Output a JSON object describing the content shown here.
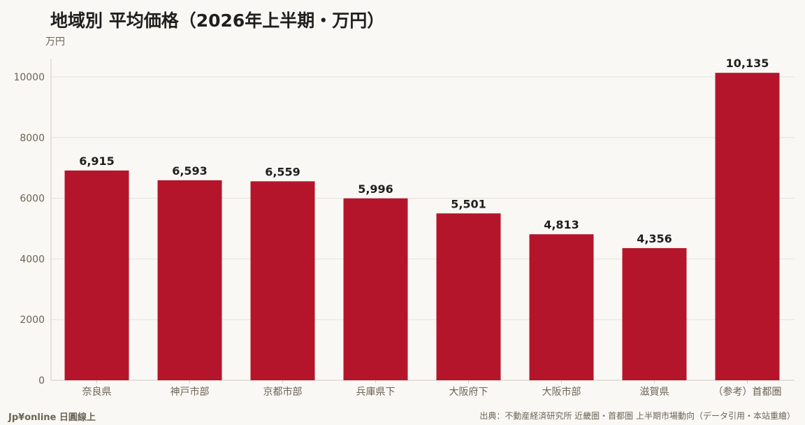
{
  "header": {
    "title": "地域別 平均価格（2026年上半期・万円）",
    "unit_label": "万円"
  },
  "footer": {
    "brand": "Jp¥online 日圓線上",
    "source": "出典：不動産経済研究所 近畿圏・首都圏 上半期市場動向（データ引用・本站重繪）"
  },
  "colors": {
    "bar": "#b5152b",
    "grid": "#e6e2da",
    "axis_text": "#6b6456",
    "label_text": "#1f1f1f"
  },
  "chart_data": {
    "type": "bar",
    "title": "地域別 平均価格（2026年上半期・万円）",
    "ylabel": "万円",
    "xlabel": "",
    "categories": [
      "奈良県",
      "神戸市部",
      "京都市部",
      "兵庫県下",
      "大阪府下",
      "大阪市部",
      "滋賀県",
      "（参考）首都圏"
    ],
    "values": [
      6915,
      6593,
      6559,
      5996,
      5501,
      4813,
      4356,
      10135
    ],
    "value_labels": [
      "6,915",
      "6,593",
      "6,559",
      "5,996",
      "5,501",
      "4,813",
      "4,356",
      "10,135"
    ],
    "ylim": [
      0,
      10600
    ],
    "yticks": [
      0,
      2000,
      4000,
      6000,
      8000,
      10000
    ],
    "ytick_labels": [
      "0",
      "2000",
      "4000",
      "6000",
      "8000",
      "10000"
    ],
    "grid": true,
    "legend": "none"
  }
}
